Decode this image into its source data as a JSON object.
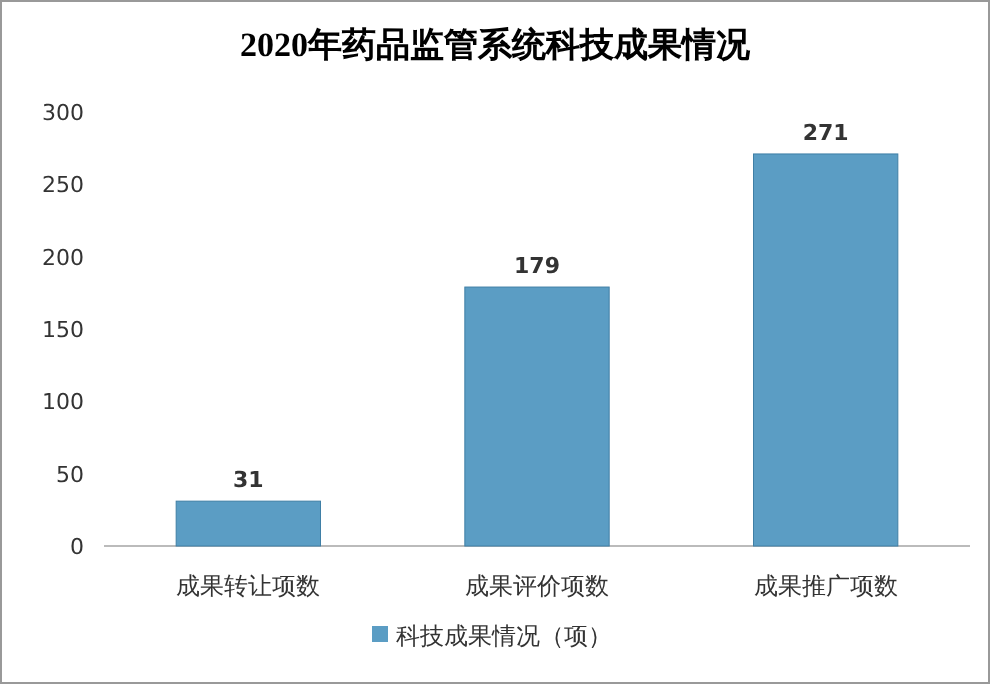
{
  "chart_data": {
    "type": "bar",
    "title": "2020年药品监管系统科技成果情况",
    "categories": [
      "成果转让项数",
      "成果评价项数",
      "成果推广项数"
    ],
    "series": [
      {
        "name": "科技成果情况（项）",
        "color": "#5b9dc4",
        "values": [
          31,
          179,
          271
        ]
      }
    ],
    "ylim": [
      0,
      300
    ],
    "yticks": [
      0,
      50,
      100,
      150,
      200,
      250,
      300
    ],
    "data_labels": true,
    "legend": "bottom",
    "grid": false
  }
}
